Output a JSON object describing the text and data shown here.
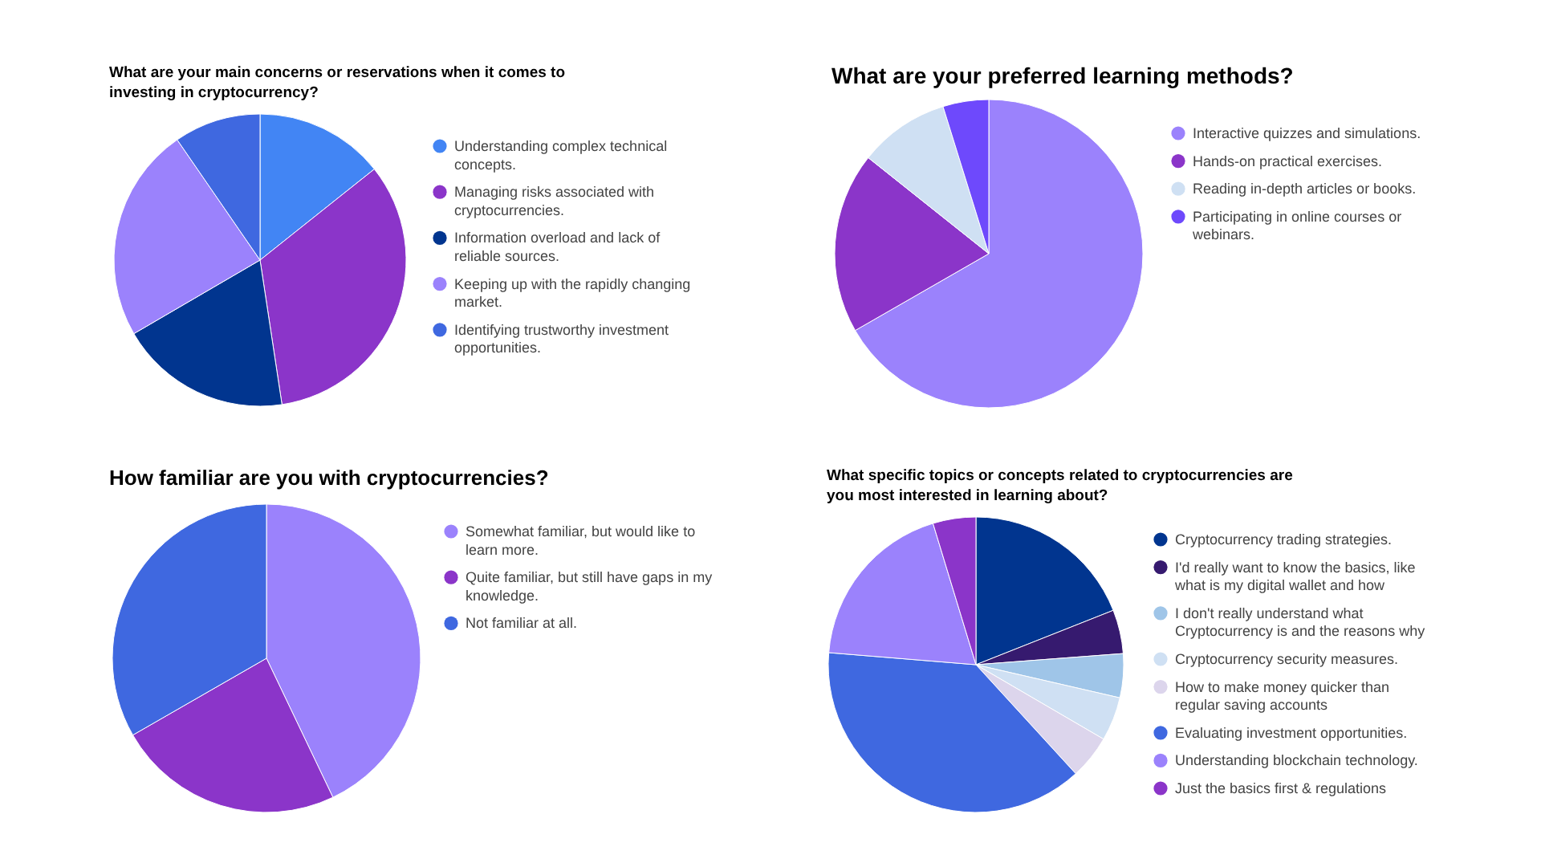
{
  "chart_data": [
    {
      "type": "pie",
      "title": "What are your main concerns or reservations when it comes to investing in cryptocurrency?",
      "categories": [
        "Understanding complex technical concepts.",
        "Managing risks associated with cryptocurrencies.",
        "Information overload and lack of reliable sources.",
        "Keeping up with the rapidly changing market.",
        "Identifying trustworthy investment opportunities."
      ],
      "values": [
        14.3,
        33.3,
        19.0,
        23.8,
        9.6
      ],
      "colors": [
        "#4285f4",
        "#8b35c9",
        "#01358f",
        "#9b82fc",
        "#3f68e0"
      ],
      "legend": "right"
    },
    {
      "type": "pie",
      "title": "What are your preferred learning methods?",
      "categories": [
        "Interactive quizzes and simulations.",
        "Hands-on practical exercises.",
        "Reading in-depth articles or books.",
        "Participating in online courses or webinars."
      ],
      "values": [
        66.7,
        19.0,
        9.5,
        4.8
      ],
      "colors": [
        "#9b82fc",
        "#8b35c9",
        "#cfe0f3",
        "#6e49fc"
      ],
      "legend": "right"
    },
    {
      "type": "pie",
      "title": "How familiar are you with cryptocurrencies?",
      "categories": [
        "Somewhat familiar, but would like to learn more.",
        "Quite familiar, but still have gaps in my knowledge.",
        "Not familiar at all."
      ],
      "values": [
        42.9,
        23.8,
        33.3
      ],
      "colors": [
        "#9b82fc",
        "#8b35c9",
        "#3f68e0"
      ],
      "legend": "right"
    },
    {
      "type": "pie",
      "title": "What specific topics or concepts related to cryptocurrencies are you most interested in learning about?",
      "categories": [
        "Cryptocurrency trading strategies.",
        "I'd really want to know the basics, like what is my digital wallet and how",
        "I don't really understand what Cryptocurrency is and the reasons why",
        "Cryptocurrency security measures.",
        "How to make money quicker than regular saving accounts",
        "Evaluating investment opportunities.",
        "Understanding blockchain technology.",
        "Just the basics first & regulations"
      ],
      "values": [
        19.0,
        4.8,
        4.8,
        4.8,
        4.8,
        38.1,
        19.0,
        4.7
      ],
      "colors": [
        "#01358f",
        "#361a6f",
        "#9fc5e8",
        "#cfe0f3",
        "#dcd5ec",
        "#3f68e0",
        "#9b82fc",
        "#8b35c9"
      ],
      "legend": "right"
    }
  ]
}
